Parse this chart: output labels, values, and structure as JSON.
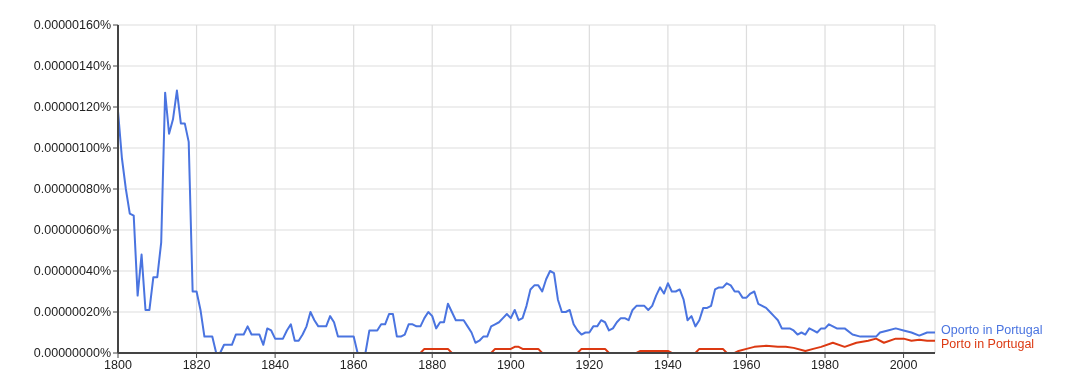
{
  "chart_data": {
    "type": "line",
    "xlim": [
      1800,
      2008
    ],
    "xticks": [
      1800,
      1820,
      1840,
      1860,
      1880,
      1900,
      1920,
      1940,
      1960,
      1980,
      2000
    ],
    "ylim": [
      0,
      1.6e-06
    ],
    "yticks": [
      {
        "value": 0,
        "label": "0.00000000%"
      },
      {
        "value": 2e-07,
        "label": "0.00000020%"
      },
      {
        "value": 4e-07,
        "label": "0.00000040%"
      },
      {
        "value": 6e-07,
        "label": "0.00000060%"
      },
      {
        "value": 8e-07,
        "label": "0.00000080%"
      },
      {
        "value": 1e-06,
        "label": "0.00000100%"
      },
      {
        "value": 1.2e-06,
        "label": "0.00000120%"
      },
      {
        "value": 1.4e-06,
        "label": "0.00000140%"
      },
      {
        "value": 1.6e-06,
        "label": "0.00000160%"
      }
    ],
    "grid": true,
    "series": [
      {
        "name": "Oporto in Portugal",
        "color": "#4a74e0",
        "x": [
          1800,
          1801,
          1802,
          1803,
          1804,
          1805,
          1806,
          1807,
          1808,
          1809,
          1810,
          1811,
          1812,
          1813,
          1814,
          1815,
          1816,
          1817,
          1818,
          1819,
          1820,
          1821,
          1822,
          1823,
          1824,
          1825,
          1826,
          1827,
          1828,
          1829,
          1830,
          1831,
          1832,
          1833,
          1834,
          1835,
          1836,
          1837,
          1838,
          1839,
          1840,
          1841,
          1842,
          1843,
          1844,
          1845,
          1846,
          1847,
          1848,
          1849,
          1850,
          1851,
          1852,
          1853,
          1854,
          1855,
          1856,
          1857,
          1858,
          1859,
          1860,
          1861,
          1862,
          1863,
          1864,
          1865,
          1866,
          1867,
          1868,
          1869,
          1870,
          1871,
          1872,
          1873,
          1874,
          1875,
          1876,
          1877,
          1878,
          1879,
          1880,
          1881,
          1882,
          1883,
          1884,
          1885,
          1886,
          1887,
          1888,
          1889,
          1890,
          1891,
          1892,
          1893,
          1894,
          1895,
          1896,
          1897,
          1898,
          1899,
          1900,
          1901,
          1902,
          1903,
          1904,
          1905,
          1906,
          1907,
          1908,
          1909,
          1910,
          1911,
          1912,
          1913,
          1914,
          1915,
          1916,
          1917,
          1918,
          1919,
          1920,
          1921,
          1922,
          1923,
          1924,
          1925,
          1926,
          1927,
          1928,
          1929,
          1930,
          1931,
          1932,
          1933,
          1934,
          1935,
          1936,
          1937,
          1938,
          1939,
          1940,
          1941,
          1942,
          1943,
          1944,
          1945,
          1946,
          1947,
          1948,
          1949,
          1950,
          1951,
          1952,
          1953,
          1954,
          1955,
          1956,
          1957,
          1958,
          1959,
          1960,
          1961,
          1962,
          1963,
          1964,
          1965,
          1966,
          1967,
          1968,
          1969,
          1970,
          1971,
          1972,
          1973,
          1974,
          1975,
          1976,
          1977,
          1978,
          1979,
          1980,
          1981,
          1982,
          1983,
          1985,
          1987,
          1989,
          1991,
          1993,
          1994,
          1996,
          1998,
          2000,
          2002,
          2004,
          2006,
          2008
        ],
        "values": [
          1.18e-06,
          9.5e-07,
          8e-07,
          6.8e-07,
          6.7e-07,
          2.8e-07,
          4.8e-07,
          2.1e-07,
          2.1e-07,
          3.7e-07,
          3.7e-07,
          5.4e-07,
          1.27e-06,
          1.07e-06,
          1.14e-06,
          1.28e-06,
          1.12e-06,
          1.12e-06,
          1.03e-06,
          3e-07,
          3e-07,
          2.1e-07,
          8e-08,
          8e-08,
          8e-08,
          0,
          0,
          4e-08,
          4e-08,
          4e-08,
          9e-08,
          9e-08,
          9e-08,
          1.3e-07,
          9e-08,
          9e-08,
          9e-08,
          4e-08,
          1.2e-07,
          1.1e-07,
          7e-08,
          7e-08,
          7e-08,
          1.1e-07,
          1.4e-07,
          6e-08,
          6e-08,
          9e-08,
          1.3e-07,
          2e-07,
          1.6e-07,
          1.3e-07,
          1.3e-07,
          1.3e-07,
          1.8e-07,
          1.5e-07,
          8e-08,
          8e-08,
          8e-08,
          8e-08,
          8e-08,
          0,
          0,
          0,
          1.1e-07,
          1.1e-07,
          1.1e-07,
          1.4e-07,
          1.4e-07,
          1.9e-07,
          1.9e-07,
          8e-08,
          8e-08,
          9e-08,
          1.4e-07,
          1.4e-07,
          1.3e-07,
          1.3e-07,
          1.7e-07,
          2e-07,
          1.8e-07,
          1.2e-07,
          1.5e-07,
          1.5e-07,
          2.4e-07,
          2e-07,
          1.6e-07,
          1.6e-07,
          1.6e-07,
          1.3e-07,
          1e-07,
          5e-08,
          6e-08,
          8e-08,
          8e-08,
          1.3e-07,
          1.4e-07,
          1.5e-07,
          1.7e-07,
          1.9e-07,
          1.7e-07,
          2.1e-07,
          1.6e-07,
          1.7e-07,
          2.3e-07,
          3.1e-07,
          3.3e-07,
          3.3e-07,
          3e-07,
          3.6e-07,
          4e-07,
          3.9e-07,
          2.6e-07,
          2e-07,
          2e-07,
          2.1e-07,
          1.4e-07,
          1.1e-07,
          9e-08,
          1e-07,
          1e-07,
          1.3e-07,
          1.3e-07,
          1.6e-07,
          1.5e-07,
          1.1e-07,
          1.2e-07,
          1.5e-07,
          1.7e-07,
          1.7e-07,
          1.6e-07,
          2.1e-07,
          2.3e-07,
          2.3e-07,
          2.3e-07,
          2.1e-07,
          2.3e-07,
          2.8e-07,
          3.2e-07,
          2.9e-07,
          3.4e-07,
          3e-07,
          3e-07,
          3.1e-07,
          2.6e-07,
          1.6e-07,
          1.8e-07,
          1.3e-07,
          1.6e-07,
          2.2e-07,
          2.2e-07,
          2.3e-07,
          3.1e-07,
          3.2e-07,
          3.2e-07,
          3.4e-07,
          3.3e-07,
          3e-07,
          3e-07,
          2.7e-07,
          2.7e-07,
          2.9e-07,
          3e-07,
          2.4e-07,
          2.3e-07,
          2.2e-07,
          2e-07,
          1.8e-07,
          1.6e-07,
          1.2e-07,
          1.2e-07,
          1.2e-07,
          1.1e-07,
          9e-08,
          1e-07,
          9e-08,
          1.2e-07,
          1.1e-07,
          1e-07,
          1.2e-07,
          1.2e-07,
          1.4e-07,
          1.3e-07,
          1.2e-07,
          1.2e-07,
          9e-08,
          8e-08,
          8e-08,
          8e-08,
          1e-07,
          1.1e-07,
          1.2e-07,
          1.1e-07,
          1e-07,
          8.5e-08,
          1e-07,
          1e-07
        ]
      },
      {
        "name": "Porto in Portugal",
        "color": "#dc3912",
        "x": [
          1800,
          1877,
          1878,
          1884,
          1885,
          1895,
          1896,
          1900,
          1901,
          1902,
          1903,
          1907,
          1908,
          1917,
          1918,
          1924,
          1925,
          1932,
          1933,
          1940,
          1941,
          1947,
          1948,
          1954,
          1955,
          1957,
          1958,
          1960,
          1962,
          1965,
          1968,
          1970,
          1972,
          1975,
          1977,
          1979,
          1982,
          1985,
          1988,
          1991,
          1993,
          1995,
          1998,
          2000,
          2002,
          2004,
          2006,
          2008
        ],
        "values": [
          0,
          0,
          2e-08,
          2e-08,
          0,
          0,
          2e-08,
          2e-08,
          3e-08,
          3e-08,
          2e-08,
          2e-08,
          0,
          0,
          2e-08,
          2e-08,
          0,
          0,
          1e-08,
          1e-08,
          0,
          0,
          2e-08,
          2e-08,
          0,
          0,
          1e-08,
          2e-08,
          3e-08,
          3.5e-08,
          3e-08,
          3e-08,
          2.5e-08,
          1e-08,
          2e-08,
          3e-08,
          5e-08,
          3e-08,
          5e-08,
          6e-08,
          7e-08,
          5e-08,
          7e-08,
          7e-08,
          6e-08,
          6.5e-08,
          6e-08,
          6e-08
        ]
      }
    ]
  }
}
